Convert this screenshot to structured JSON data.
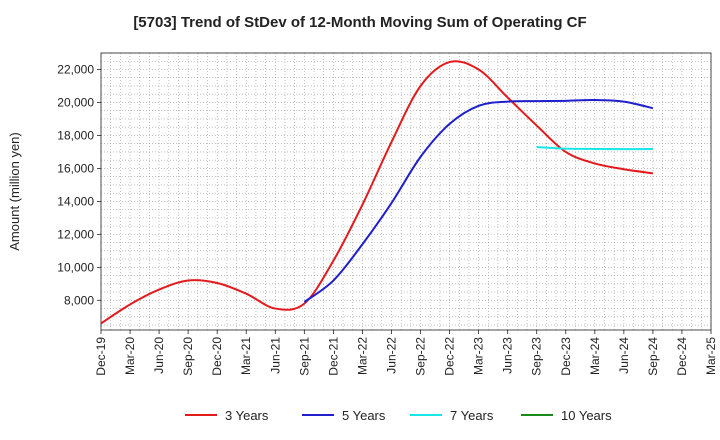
{
  "chart_data": {
    "type": "line",
    "title": "[5703]  Trend of StDev of 12-Month Moving Sum of Operating CF",
    "xlabel": "",
    "ylabel": "Amount (million yen)",
    "ylim": [
      6200,
      23000
    ],
    "yticks": [
      8000,
      10000,
      12000,
      14000,
      16000,
      18000,
      20000,
      22000
    ],
    "ytick_labels": [
      "8,000",
      "10,000",
      "12,000",
      "14,000",
      "16,000",
      "18,000",
      "20,000",
      "22,000"
    ],
    "xlim": [
      "2019-12",
      "2025-03"
    ],
    "xtick_labels": [
      "Dec-19",
      "Mar-20",
      "Jun-20",
      "Sep-20",
      "Dec-20",
      "Mar-21",
      "Jun-21",
      "Sep-21",
      "Dec-21",
      "Mar-22",
      "Jun-22",
      "Sep-22",
      "Dec-22",
      "Mar-23",
      "Jun-23",
      "Sep-23",
      "Dec-23",
      "Mar-24",
      "Jun-24",
      "Sep-24",
      "Dec-24",
      "Mar-25"
    ],
    "grid": true,
    "legend_position": "bottom",
    "series": [
      {
        "name": "3 Years",
        "color": "#e31a1c",
        "x": [
          "2019-12",
          "2020-03",
          "2020-06",
          "2020-09",
          "2020-12",
          "2021-03",
          "2021-06",
          "2021-09",
          "2021-12",
          "2022-03",
          "2022-06",
          "2022-09",
          "2022-12",
          "2023-03",
          "2023-06",
          "2023-09",
          "2023-12",
          "2024-03",
          "2024-06",
          "2024-09"
        ],
        "y": [
          6600,
          7750,
          8650,
          9200,
          9050,
          8400,
          7500,
          7800,
          10400,
          13800,
          17600,
          21000,
          22450,
          22000,
          20300,
          18600,
          17000,
          16300,
          15950,
          15700
        ]
      },
      {
        "name": "5 Years",
        "color": "#1f1fcc",
        "x": [
          "2021-09",
          "2021-12",
          "2022-03",
          "2022-06",
          "2022-09",
          "2022-12",
          "2023-03",
          "2023-06",
          "2023-09",
          "2023-12",
          "2024-03",
          "2024-06",
          "2024-09"
        ],
        "y": [
          7900,
          9200,
          11400,
          13900,
          16700,
          18700,
          19800,
          20050,
          20080,
          20100,
          20150,
          20050,
          19650
        ]
      },
      {
        "name": "7 Years",
        "color": "#19e6e6",
        "x": [
          "2023-09",
          "2023-12",
          "2024-03",
          "2024-06",
          "2024-09"
        ],
        "y": [
          17300,
          17200,
          17180,
          17170,
          17180
        ]
      },
      {
        "name": "10 Years",
        "color": "#1a8a1a",
        "x": [],
        "y": []
      }
    ]
  }
}
